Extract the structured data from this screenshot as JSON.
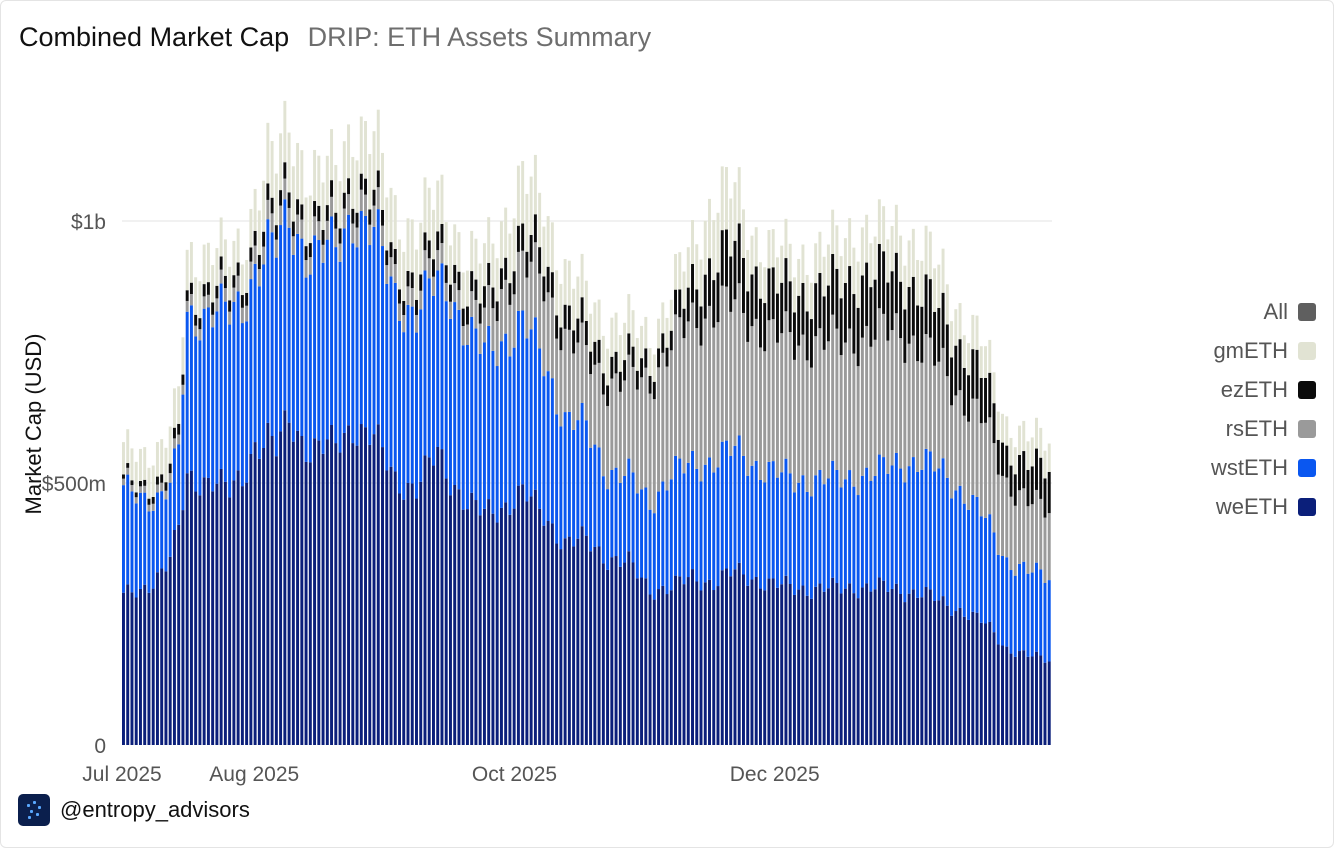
{
  "header": {
    "title": "Combined Market Cap",
    "subtitle": "DRIP: ETH Assets Summary"
  },
  "footer": {
    "handle": "@entropy_advisors"
  },
  "legend": {
    "items": [
      {
        "label": "All",
        "color": "#5f5f5f"
      },
      {
        "label": "gmETH",
        "color": "#e1e3d3"
      },
      {
        "label": "ezETH",
        "color": "#0b0b0b"
      },
      {
        "label": "rsETH",
        "color": "#9a9a9a"
      },
      {
        "label": "wstETH",
        "color": "#0a57f0"
      },
      {
        "label": "weETH",
        "color": "#0b1f7a"
      }
    ]
  },
  "chart_data": {
    "type": "bar",
    "stacked": true,
    "ylabel": "Market Cap (USD)",
    "yticks": [
      {
        "value": 0,
        "label": "0"
      },
      {
        "value": 500000000,
        "label": "$500m"
      },
      {
        "value": 1000000000,
        "label": "$1b"
      }
    ],
    "xticks": [
      {
        "date": "2025-07-01",
        "label": "Jul 2025"
      },
      {
        "date": "2025-08-01",
        "label": "Aug 2025"
      },
      {
        "date": "2025-10-01",
        "label": "Oct 2025"
      },
      {
        "date": "2025-12-01",
        "label": "Dec 2025"
      }
    ],
    "x_range": [
      "2025-07-01",
      "2026-02-04"
    ],
    "ylim": [
      0,
      1250000000
    ],
    "grid": "horizontal",
    "legend_position": "right",
    "units": "millions USD",
    "stack_order": [
      "weETH",
      "wstETH",
      "rsETH",
      "ezETH",
      "gmETH"
    ],
    "series_anchors": [
      {
        "name": "weETH",
        "points": [
          [
            "2025-07-01",
            283
          ],
          [
            "2025-07-05",
            292
          ],
          [
            "2025-07-09",
            325
          ],
          [
            "2025-07-12",
            355
          ],
          [
            "2025-07-14",
            410
          ],
          [
            "2025-07-16",
            505
          ],
          [
            "2025-07-22",
            510
          ],
          [
            "2025-07-26",
            480
          ],
          [
            "2025-07-29",
            508
          ],
          [
            "2025-08-01",
            578
          ],
          [
            "2025-08-04",
            585
          ],
          [
            "2025-08-06",
            560
          ],
          [
            "2025-08-09",
            620
          ],
          [
            "2025-08-14",
            565
          ],
          [
            "2025-08-20",
            570
          ],
          [
            "2025-08-24",
            612
          ],
          [
            "2025-08-29",
            585
          ],
          [
            "2025-09-03",
            508
          ],
          [
            "2025-09-08",
            490
          ],
          [
            "2025-09-13",
            557
          ],
          [
            "2025-09-16",
            510
          ],
          [
            "2025-09-20",
            460
          ],
          [
            "2025-09-24",
            440
          ],
          [
            "2025-09-28",
            455
          ],
          [
            "2025-10-03",
            480
          ],
          [
            "2025-10-08",
            440
          ],
          [
            "2025-10-13",
            385
          ],
          [
            "2025-10-18",
            390
          ],
          [
            "2025-10-23",
            358
          ],
          [
            "2025-10-28",
            345
          ],
          [
            "2025-11-02",
            298
          ],
          [
            "2025-11-07",
            300
          ],
          [
            "2025-11-12",
            320
          ],
          [
            "2025-11-17",
            310
          ],
          [
            "2025-11-22",
            330
          ],
          [
            "2025-11-26",
            320
          ],
          [
            "2025-12-01",
            305
          ],
          [
            "2025-12-06",
            300
          ],
          [
            "2025-12-11",
            298
          ],
          [
            "2025-12-16",
            298
          ],
          [
            "2025-12-21",
            302
          ],
          [
            "2025-12-26",
            300
          ],
          [
            "2025-12-31",
            295
          ],
          [
            "2026-01-05",
            290
          ],
          [
            "2026-01-10",
            270
          ],
          [
            "2026-01-15",
            255
          ],
          [
            "2026-01-20",
            230
          ],
          [
            "2026-01-25",
            185
          ],
          [
            "2026-01-30",
            170
          ],
          [
            "2026-02-04",
            162
          ]
        ]
      },
      {
        "name": "wstETH",
        "points": [
          [
            "2025-07-01",
            200
          ],
          [
            "2025-07-05",
            180
          ],
          [
            "2025-07-09",
            150
          ],
          [
            "2025-07-12",
            140
          ],
          [
            "2025-07-14",
            150
          ],
          [
            "2025-07-16",
            300
          ],
          [
            "2025-07-22",
            330
          ],
          [
            "2025-07-26",
            335
          ],
          [
            "2025-07-29",
            320
          ],
          [
            "2025-08-01",
            340
          ],
          [
            "2025-08-04",
            370
          ],
          [
            "2025-08-06",
            385
          ],
          [
            "2025-08-09",
            375
          ],
          [
            "2025-08-14",
            375
          ],
          [
            "2025-08-20",
            370
          ],
          [
            "2025-08-24",
            405
          ],
          [
            "2025-08-29",
            390
          ],
          [
            "2025-09-03",
            350
          ],
          [
            "2025-09-08",
            330
          ],
          [
            "2025-09-13",
            330
          ],
          [
            "2025-09-16",
            360
          ],
          [
            "2025-09-20",
            320
          ],
          [
            "2025-09-24",
            310
          ],
          [
            "2025-09-28",
            320
          ],
          [
            "2025-10-03",
            320
          ],
          [
            "2025-10-08",
            300
          ],
          [
            "2025-10-13",
            235
          ],
          [
            "2025-10-18",
            215
          ],
          [
            "2025-10-23",
            165
          ],
          [
            "2025-10-28",
            165
          ],
          [
            "2025-11-02",
            168
          ],
          [
            "2025-11-07",
            215
          ],
          [
            "2025-11-12",
            215
          ],
          [
            "2025-11-17",
            235
          ],
          [
            "2025-11-22",
            232
          ],
          [
            "2025-11-26",
            220
          ],
          [
            "2025-12-01",
            215
          ],
          [
            "2025-12-06",
            205
          ],
          [
            "2025-12-11",
            210
          ],
          [
            "2025-12-16",
            208
          ],
          [
            "2025-12-21",
            212
          ],
          [
            "2025-12-26",
            220
          ],
          [
            "2025-12-31",
            245
          ],
          [
            "2026-01-05",
            250
          ],
          [
            "2026-01-10",
            250
          ],
          [
            "2026-01-15",
            225
          ],
          [
            "2026-01-20",
            200
          ],
          [
            "2026-01-25",
            168
          ],
          [
            "2026-01-30",
            160
          ],
          [
            "2026-02-04",
            158
          ]
        ]
      },
      {
        "name": "rsETH",
        "points": [
          [
            "2025-07-01",
            12
          ],
          [
            "2025-07-05",
            12
          ],
          [
            "2025-07-09",
            15
          ],
          [
            "2025-07-12",
            18
          ],
          [
            "2025-07-14",
            18
          ],
          [
            "2025-07-16",
            20
          ],
          [
            "2025-07-22",
            25
          ],
          [
            "2025-07-26",
            25
          ],
          [
            "2025-07-29",
            30
          ],
          [
            "2025-08-01",
            35
          ],
          [
            "2025-08-04",
            35
          ],
          [
            "2025-08-06",
            35
          ],
          [
            "2025-08-09",
            38
          ],
          [
            "2025-08-14",
            35
          ],
          [
            "2025-08-20",
            35
          ],
          [
            "2025-08-24",
            40
          ],
          [
            "2025-08-29",
            40
          ],
          [
            "2025-09-03",
            35
          ],
          [
            "2025-09-08",
            35
          ],
          [
            "2025-09-13",
            38
          ],
          [
            "2025-09-16",
            35
          ],
          [
            "2025-09-20",
            40
          ],
          [
            "2025-09-24",
            65
          ],
          [
            "2025-09-28",
            100
          ],
          [
            "2025-10-03",
            110
          ],
          [
            "2025-10-08",
            150
          ],
          [
            "2025-10-13",
            155
          ],
          [
            "2025-10-18",
            140
          ],
          [
            "2025-10-23",
            170
          ],
          [
            "2025-10-28",
            185
          ],
          [
            "2025-11-02",
            230
          ],
          [
            "2025-11-07",
            250
          ],
          [
            "2025-11-12",
            270
          ],
          [
            "2025-11-17",
            290
          ],
          [
            "2025-11-22",
            275
          ],
          [
            "2025-11-26",
            270
          ],
          [
            "2025-12-01",
            260
          ],
          [
            "2025-12-06",
            265
          ],
          [
            "2025-12-11",
            262
          ],
          [
            "2025-12-16",
            260
          ],
          [
            "2025-12-21",
            265
          ],
          [
            "2025-12-26",
            262
          ],
          [
            "2025-12-31",
            255
          ],
          [
            "2026-01-05",
            210
          ],
          [
            "2026-01-10",
            200
          ],
          [
            "2026-01-15",
            175
          ],
          [
            "2026-01-20",
            180
          ],
          [
            "2026-01-25",
            150
          ],
          [
            "2026-01-30",
            130
          ],
          [
            "2026-02-04",
            130
          ]
        ]
      },
      {
        "name": "ezETH",
        "points": [
          [
            "2025-07-01",
            8
          ],
          [
            "2025-07-05",
            10
          ],
          [
            "2025-07-09",
            15
          ],
          [
            "2025-07-12",
            18
          ],
          [
            "2025-07-14",
            20
          ],
          [
            "2025-07-16",
            20
          ],
          [
            "2025-07-22",
            25
          ],
          [
            "2025-07-26",
            22
          ],
          [
            "2025-07-29",
            25
          ],
          [
            "2025-08-01",
            28
          ],
          [
            "2025-08-04",
            30
          ],
          [
            "2025-08-06",
            28
          ],
          [
            "2025-08-09",
            30
          ],
          [
            "2025-08-14",
            28
          ],
          [
            "2025-08-20",
            30
          ],
          [
            "2025-08-24",
            30
          ],
          [
            "2025-08-29",
            30
          ],
          [
            "2025-09-03",
            28
          ],
          [
            "2025-09-08",
            30
          ],
          [
            "2025-09-13",
            35
          ],
          [
            "2025-09-16",
            35
          ],
          [
            "2025-09-20",
            35
          ],
          [
            "2025-09-24",
            40
          ],
          [
            "2025-09-28",
            40
          ],
          [
            "2025-10-03",
            50
          ],
          [
            "2025-10-08",
            50
          ],
          [
            "2025-10-13",
            45
          ],
          [
            "2025-10-18",
            45
          ],
          [
            "2025-10-23",
            42
          ],
          [
            "2025-10-28",
            38
          ],
          [
            "2025-11-02",
            35
          ],
          [
            "2025-11-07",
            38
          ],
          [
            "2025-11-12",
            70
          ],
          [
            "2025-11-17",
            95
          ],
          [
            "2025-11-22",
            110
          ],
          [
            "2025-11-26",
            100
          ],
          [
            "2025-12-01",
            95
          ],
          [
            "2025-12-06",
            95
          ],
          [
            "2025-12-11",
            100
          ],
          [
            "2025-12-16",
            110
          ],
          [
            "2025-12-21",
            120
          ],
          [
            "2025-12-26",
            115
          ],
          [
            "2025-12-31",
            110
          ],
          [
            "2026-01-05",
            110
          ],
          [
            "2026-01-10",
            100
          ],
          [
            "2026-01-15",
            95
          ],
          [
            "2026-01-20",
            85
          ],
          [
            "2026-01-25",
            60
          ],
          [
            "2026-01-30",
            70
          ],
          [
            "2026-02-04",
            80
          ]
        ]
      },
      {
        "name": "gmETH",
        "points": [
          [
            "2025-07-01",
            60
          ],
          [
            "2025-07-05",
            60
          ],
          [
            "2025-07-09",
            65
          ],
          [
            "2025-07-12",
            70
          ],
          [
            "2025-07-14",
            70
          ],
          [
            "2025-07-16",
            75
          ],
          [
            "2025-07-22",
            75
          ],
          [
            "2025-07-26",
            65
          ],
          [
            "2025-07-29",
            60
          ],
          [
            "2025-08-01",
            80
          ],
          [
            "2025-08-04",
            110
          ],
          [
            "2025-08-06",
            100
          ],
          [
            "2025-08-09",
            115
          ],
          [
            "2025-08-14",
            95
          ],
          [
            "2025-08-20",
            90
          ],
          [
            "2025-08-24",
            105
          ],
          [
            "2025-08-29",
            110
          ],
          [
            "2025-09-03",
            100
          ],
          [
            "2025-09-08",
            100
          ],
          [
            "2025-09-13",
            95
          ],
          [
            "2025-09-16",
            80
          ],
          [
            "2025-09-20",
            70
          ],
          [
            "2025-09-24",
            80
          ],
          [
            "2025-09-28",
            90
          ],
          [
            "2025-10-03",
            115
          ],
          [
            "2025-10-08",
            100
          ],
          [
            "2025-10-13",
            85
          ],
          [
            "2025-10-18",
            75
          ],
          [
            "2025-10-23",
            75
          ],
          [
            "2025-10-28",
            70
          ],
          [
            "2025-11-02",
            55
          ],
          [
            "2025-11-07",
            60
          ],
          [
            "2025-11-12",
            80
          ],
          [
            "2025-11-17",
            120
          ],
          [
            "2025-11-22",
            110
          ],
          [
            "2025-11-26",
            75
          ],
          [
            "2025-12-01",
            70
          ],
          [
            "2025-12-06",
            70
          ],
          [
            "2025-12-11",
            75
          ],
          [
            "2025-12-16",
            80
          ],
          [
            "2025-12-21",
            95
          ],
          [
            "2025-12-26",
            80
          ],
          [
            "2025-12-31",
            90
          ],
          [
            "2026-01-05",
            90
          ],
          [
            "2026-01-10",
            80
          ],
          [
            "2026-01-15",
            65
          ],
          [
            "2026-01-20",
            60
          ],
          [
            "2026-01-25",
            55
          ],
          [
            "2026-01-30",
            55
          ],
          [
            "2026-02-04",
            55
          ]
        ]
      }
    ]
  }
}
